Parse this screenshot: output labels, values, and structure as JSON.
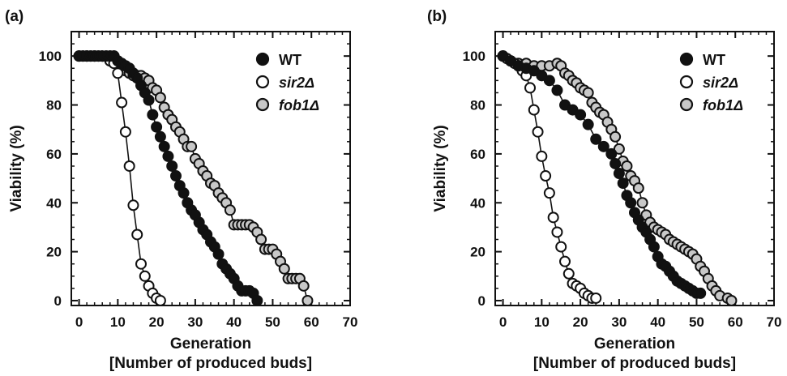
{
  "chart_data": [
    {
      "panel_label": "(a)",
      "type": "line",
      "xlabel": "Generation",
      "xlabel_sub": "[Number of produced buds]",
      "ylabel": "Viability (%)",
      "xlim": [
        -2,
        70
      ],
      "ylim": [
        -2,
        110
      ],
      "x_ticks": [
        0,
        10,
        20,
        30,
        40,
        50,
        60,
        70
      ],
      "y_ticks": [
        0,
        20,
        40,
        60,
        80,
        100
      ],
      "legend_position": "top-right",
      "series": [
        {
          "name": "WT",
          "marker": "filled-black",
          "x": [
            0,
            1,
            2,
            3,
            4,
            5,
            6,
            7,
            8,
            9,
            10,
            11,
            12,
            13,
            14,
            15,
            16,
            17,
            18,
            19,
            20,
            21,
            22,
            23,
            24,
            25,
            26,
            27,
            28,
            29,
            30,
            31,
            32,
            33,
            34,
            35,
            36,
            37,
            38,
            39,
            40,
            41,
            42,
            43,
            44,
            45,
            46
          ],
          "y": [
            100,
            100,
            100,
            100,
            100,
            100,
            100,
            100,
            100,
            100,
            98,
            97,
            96,
            95,
            93,
            91,
            88,
            85,
            82,
            76,
            71,
            67,
            63,
            59,
            55,
            51,
            47,
            44,
            40,
            37,
            35,
            32,
            29,
            27,
            24,
            22,
            19,
            15,
            13,
            11,
            9,
            6,
            4,
            4,
            4,
            3,
            0
          ]
        },
        {
          "name": "sir2Δ",
          "marker": "open-white",
          "x": [
            0,
            1,
            2,
            3,
            4,
            5,
            6,
            7,
            8,
            9,
            10,
            11,
            12,
            13,
            14,
            15,
            16,
            17,
            18,
            19,
            20,
            21
          ],
          "y": [
            100,
            100,
            100,
            100,
            100,
            100,
            100,
            100,
            98,
            97,
            93,
            81,
            69,
            55,
            39,
            27,
            15,
            10,
            6,
            3,
            1,
            0
          ]
        },
        {
          "name": "fob1Δ",
          "marker": "filled-gray",
          "x": [
            0,
            2,
            4,
            6,
            8,
            9,
            10,
            11,
            12,
            13,
            14,
            15,
            16,
            17,
            18,
            19,
            20,
            21,
            22,
            23,
            24,
            25,
            26,
            27,
            28,
            29,
            30,
            31,
            32,
            33,
            34,
            35,
            36,
            37,
            38,
            39,
            40,
            41,
            42,
            43,
            44,
            45,
            46,
            47,
            48,
            49,
            50,
            51,
            52,
            53,
            54,
            55,
            56,
            57,
            58,
            59
          ],
          "y": [
            100,
            100,
            100,
            100,
            100,
            100,
            98,
            96,
            94,
            93,
            92,
            92,
            92,
            91,
            90,
            87,
            86,
            83,
            79,
            76,
            74,
            71,
            69,
            66,
            63,
            63,
            58,
            56,
            53,
            51,
            48,
            47,
            44,
            42,
            40,
            37,
            31,
            31,
            31,
            31,
            31,
            30,
            28,
            25,
            21,
            21,
            21,
            19,
            16,
            13,
            9,
            9,
            9,
            9,
            6,
            0
          ]
        }
      ]
    },
    {
      "panel_label": "(b)",
      "type": "line",
      "xlabel": "Generation",
      "xlabel_sub": "[Number of produced buds]",
      "ylabel": "Viability (%)",
      "xlim": [
        -2,
        70
      ],
      "ylim": [
        -2,
        110
      ],
      "x_ticks": [
        0,
        10,
        20,
        30,
        40,
        50,
        60,
        70
      ],
      "y_ticks": [
        0,
        20,
        40,
        60,
        80,
        100
      ],
      "legend_position": "top-right",
      "series": [
        {
          "name": "WT",
          "marker": "filled-black",
          "x": [
            0,
            2,
            4,
            6,
            8,
            10,
            12,
            14,
            16,
            18,
            20,
            22,
            24,
            26,
            28,
            29,
            30,
            31,
            32,
            33,
            34,
            35,
            36,
            37,
            38,
            39,
            40,
            41,
            42,
            43,
            44,
            45,
            46,
            47,
            48,
            49,
            50,
            51
          ],
          "y": [
            100,
            98,
            96,
            95,
            94,
            92,
            90,
            86,
            80,
            78,
            76,
            72,
            66,
            63,
            60,
            56,
            52,
            48,
            43,
            40,
            36,
            33,
            30,
            28,
            25,
            22,
            18,
            15,
            14,
            12,
            10,
            8,
            7,
            6,
            5,
            4,
            3,
            3
          ]
        },
        {
          "name": "sir2Δ",
          "marker": "open-white",
          "x": [
            0,
            1,
            2,
            3,
            4,
            5,
            6,
            7,
            8,
            9,
            10,
            11,
            12,
            13,
            14,
            15,
            16,
            17,
            18,
            19,
            20,
            21,
            22,
            23,
            24
          ],
          "y": [
            100,
            99,
            98,
            97,
            96,
            94,
            92,
            87,
            78,
            69,
            59,
            51,
            44,
            34,
            28,
            22,
            16,
            11,
            7,
            6,
            5,
            3,
            2,
            1,
            1
          ]
        },
        {
          "name": "fob1Δ",
          "marker": "filled-gray",
          "x": [
            0,
            2,
            4,
            6,
            8,
            10,
            12,
            14,
            15,
            16,
            17,
            18,
            19,
            20,
            21,
            22,
            23,
            24,
            25,
            26,
            27,
            28,
            29,
            30,
            31,
            32,
            33,
            34,
            35,
            36,
            37,
            38,
            39,
            40,
            41,
            42,
            43,
            44,
            45,
            46,
            47,
            48,
            49,
            50,
            51,
            52,
            53,
            54,
            55,
            56,
            58,
            59
          ],
          "y": [
            100,
            98,
            97,
            97,
            96,
            96,
            96,
            97,
            96,
            93,
            92,
            90,
            89,
            87,
            86,
            85,
            81,
            79,
            77,
            76,
            73,
            70,
            67,
            62,
            57,
            55,
            51,
            49,
            46,
            40,
            35,
            32,
            30,
            29,
            28,
            27,
            25,
            24,
            23,
            22,
            21,
            20,
            19,
            17,
            14,
            12,
            9,
            6,
            4,
            2,
            1,
            0
          ]
        }
      ]
    }
  ]
}
